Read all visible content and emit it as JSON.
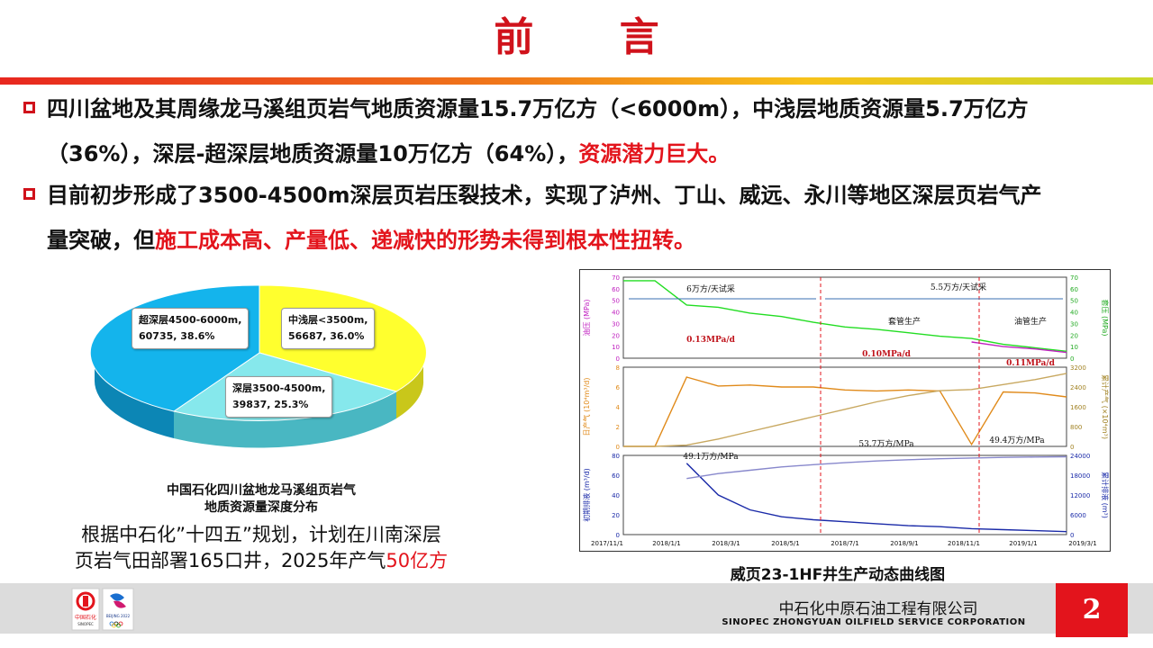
{
  "title": "前  言",
  "bullets": [
    {
      "line1": "四川盆地及其周缘龙马溪组页岩气地质资源量15.7万亿方（<6000m），中浅层地质资源量5.7万亿方",
      "line2_normal": "（36%），深层-超深层地质资源量10万亿方（64%），",
      "line2_red": "资源潜力巨大。"
    },
    {
      "line1": "目前初步形成了3500-4500m深层页岩压裂技术，实现了泸州、丁山、威远、永川等地区深层页岩气产",
      "line2_normal": "量突破，但",
      "line2_red": "施工成本高、产量低、递减快的形势未得到根本性扭转。"
    }
  ],
  "pie": {
    "slices": [
      {
        "name": "中浅层<3500m",
        "value": 56687,
        "pct": "36.0%",
        "color": "#ffff2e",
        "side": "#c9c71a",
        "label_l1": "中浅层<3500m,",
        "label_l2": "56687, 36.0%"
      },
      {
        "name": "深层3500-4500m",
        "value": 39837,
        "pct": "25.3%",
        "color": "#86e8ec",
        "side": "#49b7c2",
        "label_l1": "深层3500-4500m,",
        "label_l2": "39837, 25.3%"
      },
      {
        "name": "超深层4500-6000m",
        "value": 60735,
        "pct": "38.6%",
        "color": "#14b4ec",
        "side": "#0c86b5",
        "label_l1": "超深层4500-6000m,",
        "label_l2": "60735, 38.6%"
      }
    ],
    "caption_l1": "中国石化四川盆地龙马溪组页岩气",
    "caption_l2": "地质资源量深度分布"
  },
  "plan": {
    "line1": "根据中石化”十四五”规划，计划在川南深层",
    "line2_normal": "页岩气田部署165口井，2025年产气",
    "line2_red": "50亿方"
  },
  "chart_data": {
    "type": "line",
    "title": "威页23-1HF井生产动态曲线图",
    "x_ticks": [
      "2017/11/1",
      "2018/1/1",
      "2018/3/1",
      "2018/5/1",
      "2018/7/1",
      "2018/9/1",
      "2018/11/1",
      "2019/1/1",
      "2019/3/1"
    ],
    "panels": [
      {
        "left_axis": {
          "label": "油压 (MPa)",
          "ticks": [
            "0",
            "10",
            "20",
            "30",
            "40",
            "50",
            "60",
            "70"
          ],
          "color": "#c020c0"
        },
        "right_axis": {
          "label": "套压 (MPa)",
          "ticks": [
            "0",
            "10",
            "20",
            "30",
            "40",
            "50",
            "60",
            "70"
          ],
          "color": "#22aa22"
        },
        "annotations": [
          "6万方/天试采",
          "5.5万方/天试采",
          "套管生产",
          "油管生产",
          "0.13MPa/d",
          "0.10MPa/d",
          "0.11MPa/d"
        ],
        "series": [
          {
            "color": "#22dd22",
            "values": [
              67,
              67,
              46,
              44,
              39,
              36,
              31,
              27,
              25,
              22,
              19,
              17,
              12,
              9,
              6
            ]
          },
          {
            "color": "#c020c0",
            "values": [
              null,
              null,
              null,
              null,
              null,
              null,
              null,
              null,
              null,
              null,
              null,
              14,
              10,
              8,
              5
            ]
          }
        ]
      },
      {
        "left_axis": {
          "label": "日产气 (10⁴m³/d)",
          "ticks": [
            "0",
            "2",
            "4",
            "6",
            "8"
          ],
          "color": "#e08a1a"
        },
        "right_axis": {
          "label": "累计产气 (×10⁴m³)",
          "ticks": [
            "0",
            "800",
            "1600",
            "2400",
            "3200"
          ],
          "color": "#a08020"
        },
        "annotations": [
          "49.1万方/MPa",
          "53.7万方/MPa",
          "49.4万方/MPa"
        ],
        "series": [
          {
            "color": "#e08a1a",
            "values": [
              0,
              0,
              7,
              6.1,
              6.2,
              6.0,
              6.0,
              5.7,
              5.6,
              5.7,
              5.6,
              0.2,
              5.5,
              5.4,
              5.0
            ]
          },
          {
            "color": "#c8a860",
            "values": [
              0,
              0,
              50,
              300,
              600,
              900,
              1200,
              1500,
              1800,
              2050,
              2250,
              2300,
              2500,
              2700,
              2950
            ]
          }
        ]
      },
      {
        "left_axis": {
          "label": "初期排液 (m³/d)",
          "ticks": [
            "0",
            "20",
            "40",
            "60",
            "80"
          ],
          "color": "#1a2aa8"
        },
        "right_axis": {
          "label": "累计排液 (m³)",
          "ticks": [
            "0",
            "6000",
            "12000",
            "18000",
            "24000"
          ],
          "color": "#1a2aa8"
        },
        "annotations": [],
        "series": [
          {
            "color": "#1a2aa8",
            "values": [
              null,
              null,
              72,
              40,
              25,
              18,
              15,
              13,
              11,
              9,
              8,
              6,
              5,
              4,
              3
            ]
          },
          {
            "color": "#8888cc",
            "values": [
              null,
              null,
              17000,
              18500,
              19500,
              20500,
              21200,
              21800,
              22300,
              22700,
              23000,
              23200,
              23400,
              23500,
              23600
            ]
          }
        ]
      }
    ]
  },
  "chart_caption": "威页23-1HF井生产动态曲线图",
  "footer": {
    "company_cn": "中石化中原石油工程有限公司",
    "company_en": "SINOPEC ZHONGYUAN OILFIELD SERVICE CORPORATION",
    "logo_text": "中国石化",
    "logo_sub": "SINOPEC",
    "olympic_text": "BEIJING 2022",
    "page_number": "2"
  }
}
